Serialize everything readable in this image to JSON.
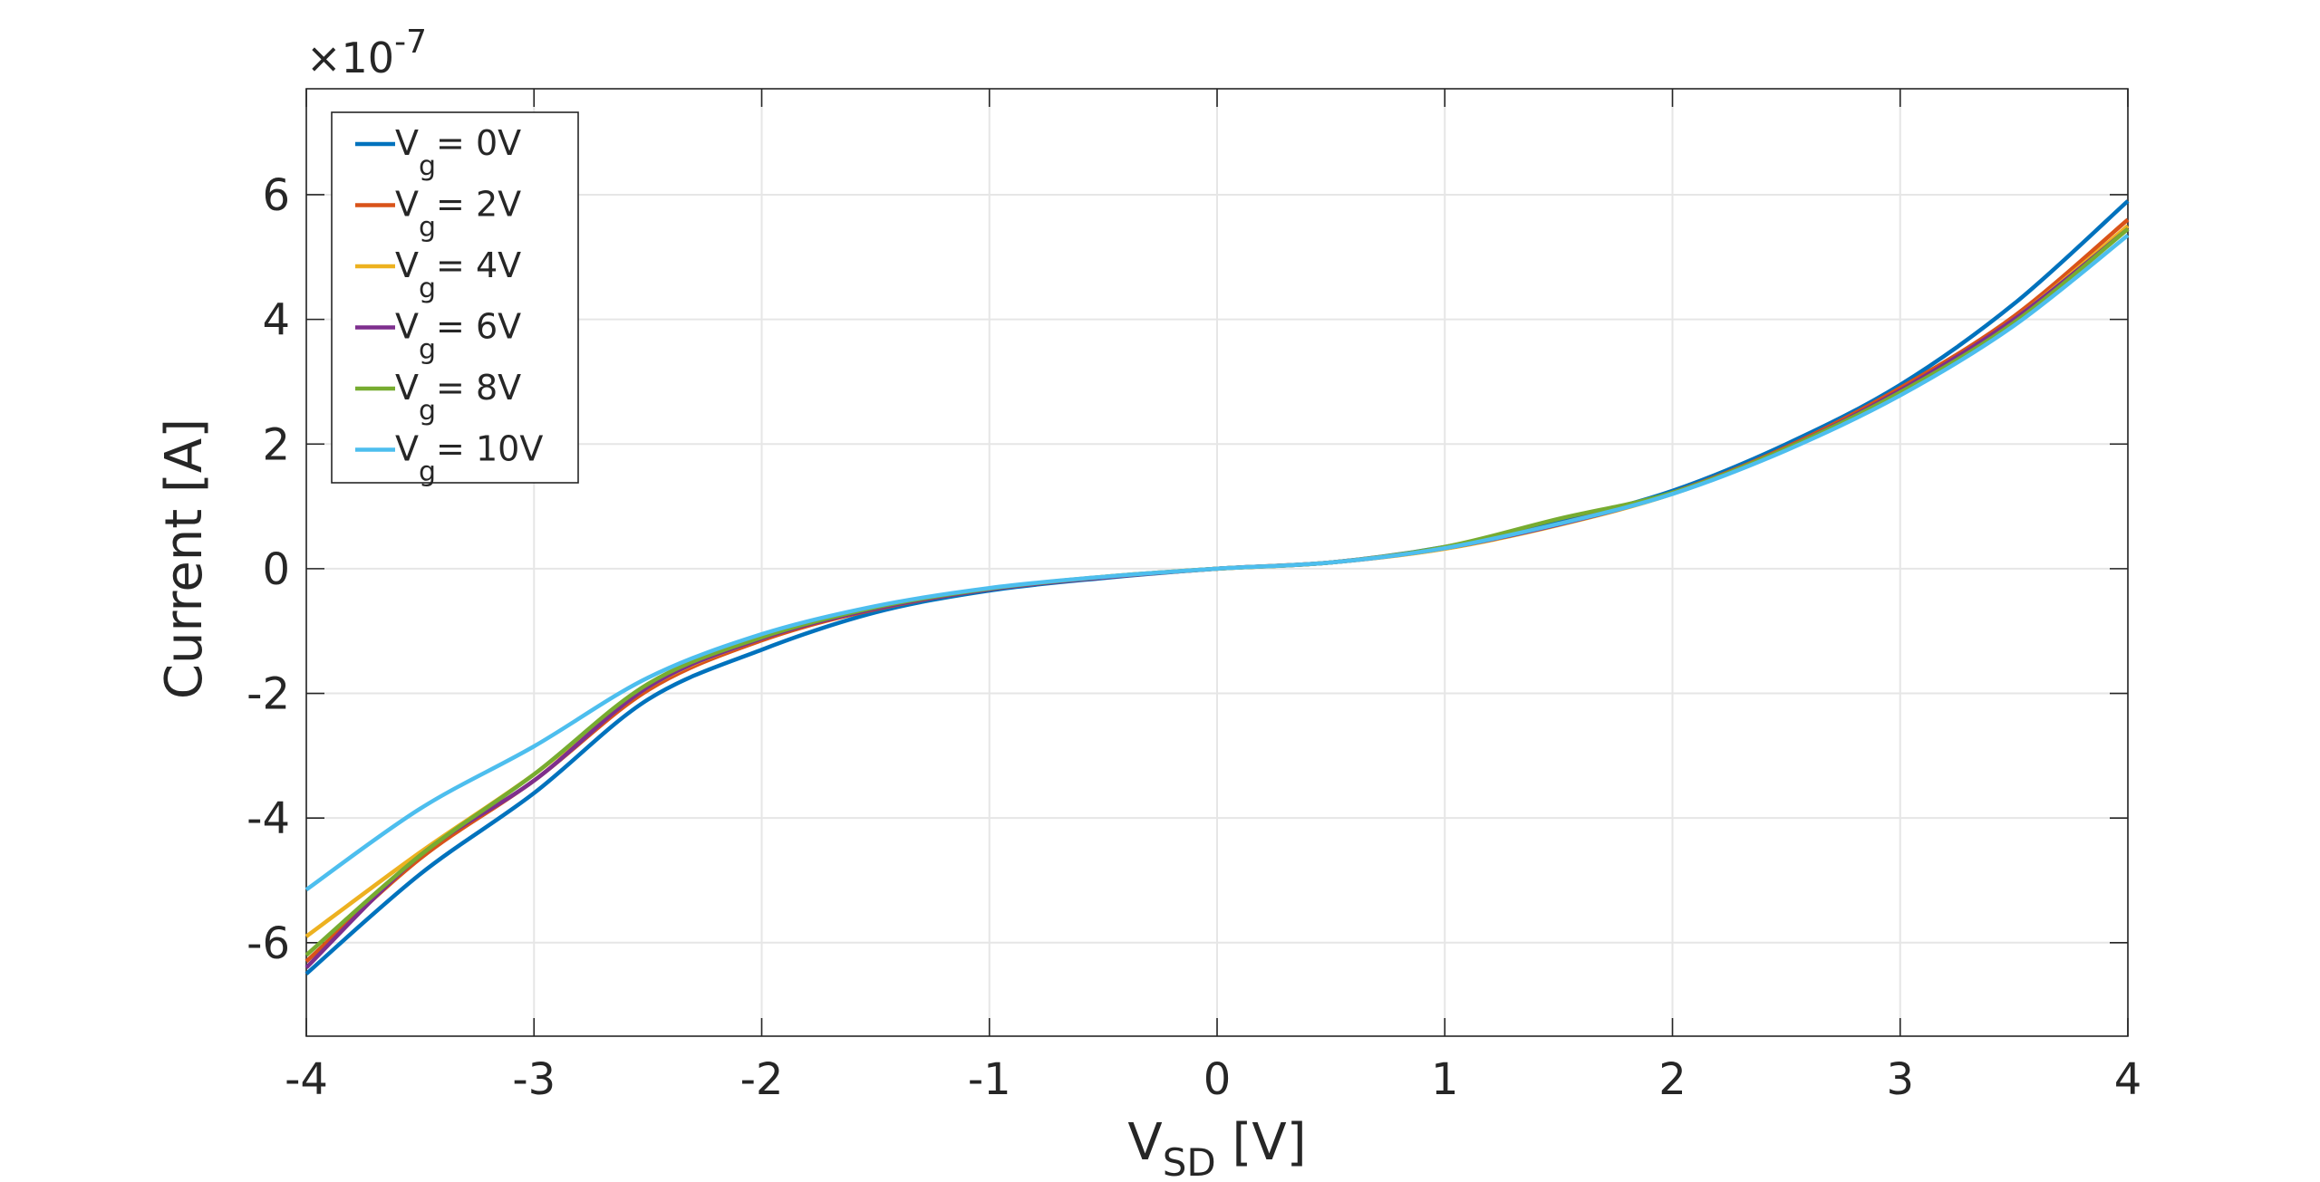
{
  "chart_data": {
    "type": "line",
    "xlabel": "V",
    "xlabel_sub": "SD",
    "xlabel_unit": " [V]",
    "ylabel": "Current [A]",
    "exponent_prefix": "×10",
    "exponent": "-7",
    "xlim": [
      -4,
      4
    ],
    "ylim": [
      -7.5,
      7.7
    ],
    "xticks": [
      -4,
      -3,
      -2,
      -1,
      0,
      1,
      2,
      3,
      4
    ],
    "yticks": [
      -6,
      -4,
      -2,
      0,
      2,
      4,
      6
    ],
    "x_tick_labels": [
      "-4",
      "-3",
      "-2",
      "-1",
      "0",
      "1",
      "2",
      "3",
      "4"
    ],
    "y_tick_labels": [
      "-6",
      "-4",
      "-2",
      "0",
      "2",
      "4",
      "6"
    ],
    "grid": true,
    "legend_position": "top-left",
    "x": [
      -4,
      -3.5,
      -3,
      -2.5,
      -2,
      -1.5,
      -1,
      -0.5,
      0,
      0.5,
      1,
      1.5,
      2,
      2.5,
      3,
      3.5,
      4
    ],
    "series": [
      {
        "prefix": "V",
        "sub": "g",
        "suffix": "= 0V",
        "color": "#0072BD",
        "values": [
          -6.5,
          -4.9,
          -3.6,
          -2.1,
          -1.3,
          -0.7,
          -0.35,
          -0.15,
          0,
          0.1,
          0.35,
          0.75,
          1.25,
          2.0,
          2.95,
          4.25,
          5.9
        ]
      },
      {
        "prefix": "V",
        "sub": "g",
        "suffix": "= 2V",
        "color": "#D95319",
        "values": [
          -6.3,
          -4.65,
          -3.4,
          -1.95,
          -1.15,
          -0.65,
          -0.33,
          -0.14,
          0,
          0.1,
          0.34,
          0.72,
          1.22,
          1.95,
          2.9,
          4.05,
          5.6
        ]
      },
      {
        "prefix": "V",
        "sub": "g",
        "suffix": "= 4V",
        "color": "#EDB120",
        "values": [
          -5.9,
          -4.55,
          -3.3,
          -1.9,
          -1.12,
          -0.63,
          -0.32,
          -0.13,
          0,
          0.1,
          0.32,
          0.7,
          1.2,
          1.92,
          2.85,
          4.0,
          5.5
        ]
      },
      {
        "prefix": "V",
        "sub": "g",
        "suffix": "= 6V",
        "color": "#7E2F8E",
        "values": [
          -6.4,
          -4.6,
          -3.4,
          -1.9,
          -1.12,
          -0.64,
          -0.33,
          -0.14,
          0,
          0.1,
          0.33,
          0.71,
          1.21,
          1.93,
          2.86,
          4.0,
          5.45
        ]
      },
      {
        "prefix": "V",
        "sub": "g",
        "suffix": "= 8V",
        "color": "#77AC30",
        "values": [
          -6.2,
          -4.6,
          -3.3,
          -1.85,
          -1.1,
          -0.62,
          -0.32,
          -0.13,
          0,
          0.1,
          0.35,
          0.8,
          1.22,
          1.93,
          2.83,
          3.95,
          5.45
        ]
      },
      {
        "prefix": "V",
        "sub": "g",
        "suffix": "= 10V",
        "color": "#4DBEEE",
        "values": [
          -5.15,
          -3.85,
          -2.85,
          -1.75,
          -1.05,
          -0.6,
          -0.31,
          -0.13,
          0,
          0.1,
          0.33,
          0.72,
          1.2,
          1.9,
          2.78,
          3.9,
          5.35
        ]
      }
    ]
  }
}
